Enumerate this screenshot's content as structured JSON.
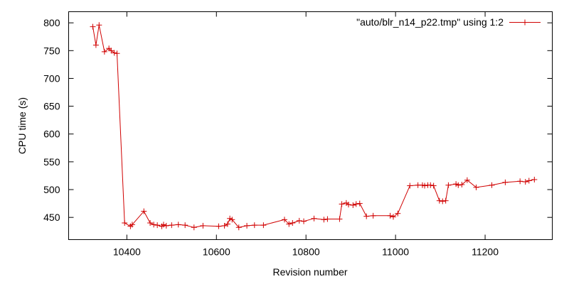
{
  "chart_data": {
    "type": "line",
    "xlabel": "Revision number",
    "ylabel": "CPU time (s)",
    "xlim": [
      10270,
      11350
    ],
    "ylim": [
      410,
      820
    ],
    "xticks": [
      10400,
      10600,
      10800,
      11000,
      11200
    ],
    "yticks": [
      450,
      500,
      550,
      600,
      650,
      700,
      750,
      800
    ],
    "grid": false,
    "legend_position": "top-right",
    "colors": {
      "series": "#d00000",
      "axis": "#000000"
    },
    "series": [
      {
        "name": "\"auto/blr_n14_p22.tmp\" using 1:2",
        "x": [
          10324,
          10331,
          10338,
          10350,
          10360,
          10365,
          10372,
          10378,
          10395,
          10408,
          10412,
          10438,
          10452,
          10460,
          10468,
          10478,
          10482,
          10488,
          10500,
          10515,
          10530,
          10550,
          10570,
          10605,
          10618,
          10625,
          10630,
          10635,
          10650,
          10668,
          10685,
          10705,
          10752,
          10762,
          10770,
          10785,
          10795,
          10818,
          10840,
          10848,
          10875,
          10880,
          10890,
          10895,
          10905,
          10912,
          10920,
          10935,
          10950,
          10988,
          10995,
          11005,
          11032,
          11050,
          11060,
          11065,
          11072,
          11078,
          11085,
          11098,
          11105,
          11112,
          11118,
          11135,
          11140,
          11148,
          11160,
          11180,
          11215,
          11245,
          11278,
          11290,
          11298,
          11310
        ],
        "y": [
          793,
          760,
          796,
          748,
          754,
          750,
          746,
          745,
          440,
          434,
          437,
          461,
          440,
          437,
          436,
          434,
          437,
          435,
          436,
          437,
          436,
          432,
          435,
          434,
          435,
          438,
          448,
          446,
          432,
          435,
          436,
          436,
          446,
          438,
          440,
          444,
          443,
          448,
          446,
          447,
          447,
          474,
          476,
          473,
          472,
          474,
          475,
          452,
          453,
          453,
          451,
          457,
          507,
          508,
          508,
          507,
          508,
          508,
          507,
          480,
          479,
          480,
          508,
          510,
          508,
          509,
          517,
          504,
          508,
          513,
          515,
          514,
          516,
          518
        ]
      }
    ]
  }
}
